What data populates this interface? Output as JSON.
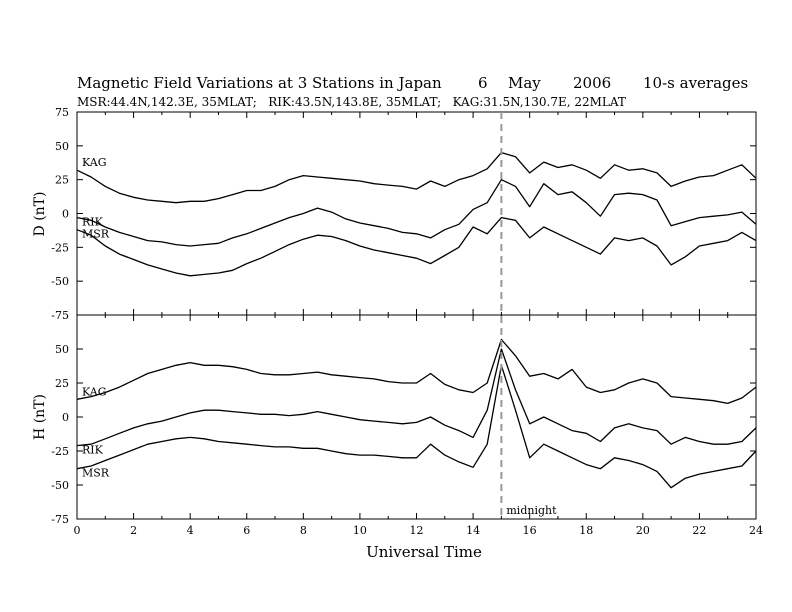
{
  "header": {
    "title": "Magnetic Field Variations at 3 Stations in Japan",
    "day": "6",
    "month": "May",
    "year": "2006",
    "averaging": "10-s averages",
    "stations_line": "MSR:44.4N,142.3E, 35MLAT;   RIK:43.5N,143.8E, 35MLAT;   KAG:31.5N,130.7E, 22MLAT"
  },
  "chart_data": [
    {
      "type": "line",
      "panel": "D",
      "ylabel": "D (nT)",
      "ylim": [
        -75,
        75
      ],
      "yticks": [
        -75,
        -50,
        -25,
        0,
        25,
        50,
        75
      ],
      "xlim": [
        0,
        24
      ],
      "xticks": [
        0,
        2,
        4,
        6,
        8,
        10,
        12,
        14,
        16,
        18,
        20,
        22,
        24
      ],
      "x": [
        0,
        0.5,
        1,
        1.5,
        2,
        2.5,
        3,
        3.5,
        4,
        4.5,
        5,
        5.5,
        6,
        6.5,
        7,
        7.5,
        8,
        8.5,
        9,
        9.5,
        10,
        10.5,
        11,
        11.5,
        12,
        12.5,
        13,
        13.5,
        14,
        14.5,
        15,
        15.5,
        16,
        16.5,
        17,
        17.5,
        18,
        18.5,
        19,
        19.5,
        20,
        20.5,
        21,
        21.5,
        22,
        22.5,
        23,
        23.5,
        24
      ],
      "series": [
        {
          "name": "KAG",
          "values": [
            32,
            27,
            20,
            15,
            12,
            10,
            9,
            8,
            9,
            9,
            11,
            14,
            17,
            17,
            20,
            25,
            28,
            27,
            26,
            25,
            24,
            22,
            21,
            20,
            18,
            24,
            20,
            25,
            28,
            33,
            45,
            42,
            30,
            38,
            34,
            36,
            32,
            26,
            36,
            32,
            33,
            30,
            20,
            24,
            27,
            28,
            32,
            36,
            26
          ]
        },
        {
          "name": "RIK",
          "values": [
            -3,
            -5,
            -10,
            -14,
            -17,
            -20,
            -21,
            -23,
            -24,
            -23,
            -22,
            -18,
            -15,
            -11,
            -7,
            -3,
            0,
            4,
            1,
            -4,
            -7,
            -9,
            -11,
            -14,
            -15,
            -18,
            -12,
            -8,
            3,
            8,
            25,
            20,
            5,
            22,
            14,
            16,
            8,
            -2,
            14,
            15,
            14,
            10,
            -9,
            -6,
            -3,
            -2,
            -1,
            1,
            -8
          ]
        },
        {
          "name": "MSR",
          "values": [
            -12,
            -16,
            -24,
            -30,
            -34,
            -38,
            -41,
            -44,
            -46,
            -45,
            -44,
            -42,
            -37,
            -33,
            -28,
            -23,
            -19,
            -16,
            -17,
            -20,
            -24,
            -27,
            -29,
            -31,
            -33,
            -37,
            -31,
            -25,
            -10,
            -15,
            -3,
            -5,
            -18,
            -10,
            -15,
            -20,
            -25,
            -30,
            -18,
            -20,
            -18,
            -24,
            -38,
            -32,
            -24,
            -22,
            -20,
            -14,
            -20
          ]
        }
      ]
    },
    {
      "type": "line",
      "panel": "H",
      "ylabel": "H (nT)",
      "ylim": [
        -75,
        75
      ],
      "yticks": [
        -75,
        -50,
        -25,
        0,
        25,
        50
      ],
      "xlim": [
        0,
        24
      ],
      "xlabel": "Universal Time",
      "xticks": [
        0,
        2,
        4,
        6,
        8,
        10,
        12,
        14,
        16,
        18,
        20,
        22,
        24
      ],
      "x": [
        0,
        0.5,
        1,
        1.5,
        2,
        2.5,
        3,
        3.5,
        4,
        4.5,
        5,
        5.5,
        6,
        6.5,
        7,
        7.5,
        8,
        8.5,
        9,
        9.5,
        10,
        10.5,
        11,
        11.5,
        12,
        12.5,
        13,
        13.5,
        14,
        14.5,
        15,
        15.5,
        16,
        16.5,
        17,
        17.5,
        18,
        18.5,
        19,
        19.5,
        20,
        20.5,
        21,
        21.5,
        22,
        22.5,
        23,
        23.5,
        24
      ],
      "series": [
        {
          "name": "KAG",
          "values": [
            13,
            15,
            18,
            22,
            27,
            32,
            35,
            38,
            40,
            38,
            38,
            37,
            35,
            32,
            31,
            31,
            32,
            33,
            31,
            30,
            29,
            28,
            26,
            25,
            25,
            32,
            24,
            20,
            18,
            25,
            57,
            45,
            30,
            32,
            28,
            35,
            22,
            18,
            20,
            25,
            28,
            25,
            15,
            14,
            13,
            12,
            10,
            14,
            22
          ]
        },
        {
          "name": "RIK",
          "values": [
            -21,
            -20,
            -16,
            -12,
            -8,
            -5,
            -3,
            0,
            3,
            5,
            5,
            4,
            3,
            2,
            2,
            1,
            2,
            4,
            2,
            0,
            -2,
            -3,
            -4,
            -5,
            -4,
            0,
            -6,
            -10,
            -15,
            5,
            50,
            20,
            -5,
            0,
            -5,
            -10,
            -12,
            -18,
            -8,
            -5,
            -8,
            -10,
            -20,
            -15,
            -18,
            -20,
            -20,
            -18,
            -8
          ]
        },
        {
          "name": "MSR",
          "values": [
            -38,
            -36,
            -32,
            -28,
            -24,
            -20,
            -18,
            -16,
            -15,
            -16,
            -18,
            -19,
            -20,
            -21,
            -22,
            -22,
            -23,
            -23,
            -25,
            -27,
            -28,
            -28,
            -29,
            -30,
            -30,
            -20,
            -28,
            -33,
            -37,
            -20,
            38,
            5,
            -30,
            -20,
            -25,
            -30,
            -35,
            -38,
            -30,
            -32,
            -35,
            -40,
            -52,
            -45,
            -42,
            -40,
            -38,
            -36,
            -25
          ]
        }
      ]
    }
  ],
  "annotations": {
    "marker_hour": 15,
    "marker_label": "midnight"
  }
}
